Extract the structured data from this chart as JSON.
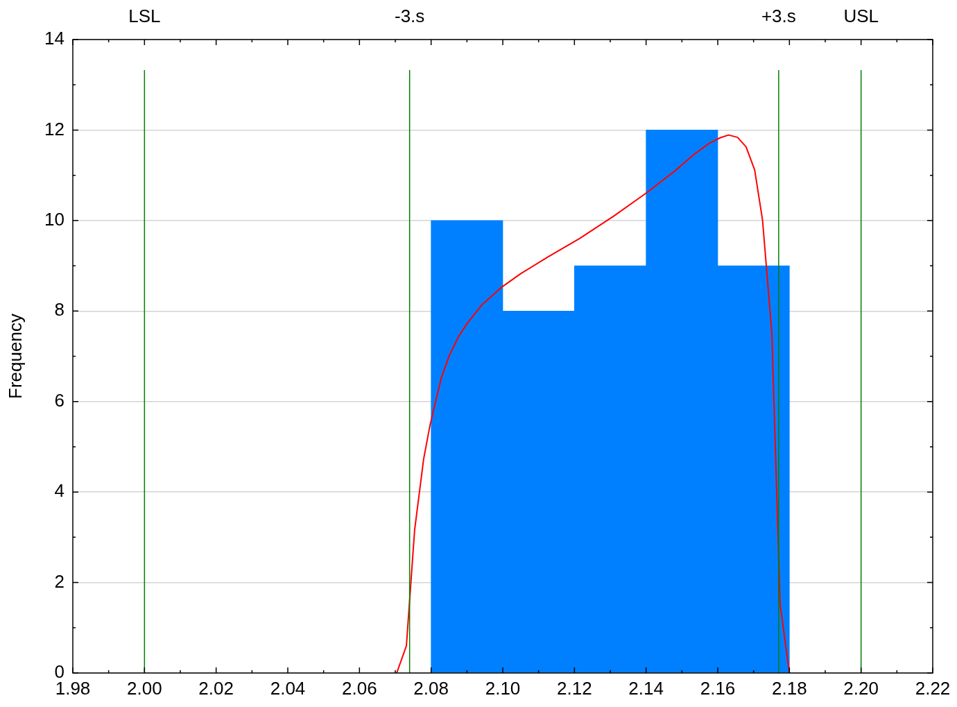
{
  "chart_data": {
    "type": "histogram",
    "ylabel": "Frequency",
    "series": [
      {
        "bins": [
          2.08,
          2.1,
          2.12,
          2.14,
          2.16,
          2.18
        ],
        "values": [
          10,
          8,
          9,
          12,
          9
        ],
        "color": "#0080ff"
      },
      {
        "type": "line",
        "x": [
          2.0704,
          2.0731,
          2.0754,
          2.0779,
          2.0797,
          2.0828,
          2.0851,
          2.0877,
          2.0901,
          2.0941,
          2.0999,
          2.1051,
          2.1125,
          2.1214,
          2.131,
          2.1399,
          2.1481,
          2.1532,
          2.1577,
          2.1607,
          2.163,
          2.1655,
          2.1679,
          2.1703,
          2.1725,
          2.1751,
          2.1774,
          2.18
        ],
        "values": [
          0,
          0.6,
          3.16,
          4.72,
          5.48,
          6.51,
          7.02,
          7.44,
          7.73,
          8.13,
          8.54,
          8.83,
          9.19,
          9.6,
          10.1,
          10.6,
          11.1,
          11.45,
          11.71,
          11.83,
          11.89,
          11.84,
          11.63,
          11.12,
          10.01,
          7.51,
          1.52,
          0
        ],
        "color": "#ff0000"
      }
    ],
    "xlim": [
      1.98,
      2.22
    ],
    "xticks": [
      1.98,
      {
        "value": 2,
        "label": "2.00"
      },
      2.02,
      2.04,
      2.06,
      2.08,
      {
        "value": 2.1,
        "label": "2.10"
      },
      2.12,
      2.14,
      2.16,
      2.18,
      {
        "value": 2.2,
        "label": "2.20"
      },
      2.22
    ],
    "ylim": [
      0,
      14
    ],
    "yticks": [
      0,
      2,
      4,
      6,
      8,
      10,
      12,
      14
    ],
    "ref_lines": [
      {
        "axis": "x",
        "value": 2,
        "label": "LSL",
        "color": "#008000"
      },
      {
        "axis": "x",
        "value": 2.074,
        "label": "-3.s",
        "color": "#008000"
      },
      {
        "axis": "x",
        "value": 2.177,
        "label": "+3.s",
        "color": "#008000"
      },
      {
        "axis": "x",
        "value": 2.2,
        "label": "USL",
        "color": "#008000"
      }
    ],
    "grid": "y",
    "marker": "none",
    "line_style": "solid"
  }
}
